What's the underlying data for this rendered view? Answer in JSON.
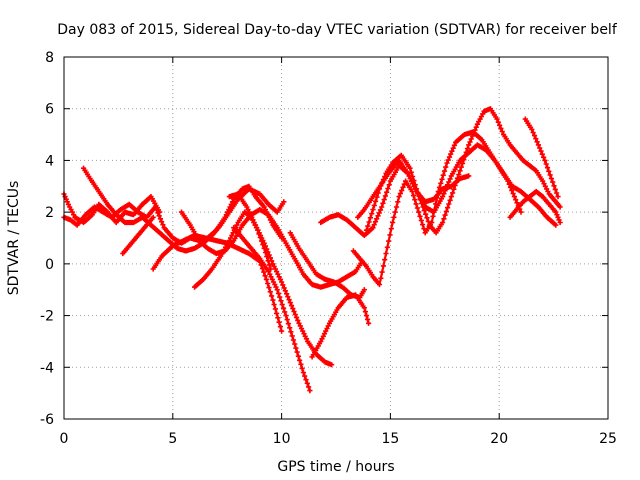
{
  "chart_data": {
    "type": "scatter",
    "title": "Day 083 of 2015, Sidereal Day-to-day VTEC variation (SDTVAR) for receiver belf",
    "xlabel": "GPS time / hours",
    "ylabel": "SDTVAR / TECUs",
    "xlim": [
      0,
      25
    ],
    "ylim": [
      -6,
      8
    ],
    "xticks": [
      "0",
      "5",
      "10",
      "15",
      "20",
      "25"
    ],
    "yticks": [
      "-6",
      "-4",
      "-2",
      "0",
      "2",
      "4",
      "6",
      "8"
    ],
    "grid": true,
    "marker": "plus",
    "color": "#ff0000",
    "series": [
      {
        "x": [
          0.0,
          0.3,
          0.6,
          1.0,
          1.4,
          1.8,
          2.2,
          2.6,
          3.0,
          3.4,
          3.8,
          4.2,
          4.6,
          5.0,
          5.4,
          5.8,
          6.2,
          6.6,
          7.0,
          7.4,
          7.8,
          8.2,
          8.5,
          8.8,
          9.2,
          9.6,
          10.0
        ],
        "y": [
          1.8,
          1.7,
          1.5,
          1.9,
          2.2,
          2.0,
          1.8,
          2.1,
          2.3,
          2.0,
          1.8,
          2.2,
          1.4,
          1.0,
          0.8,
          1.0,
          0.9,
          1.0,
          1.3,
          1.8,
          2.5,
          2.9,
          3.0,
          2.6,
          2.2,
          1.5,
          1.0
        ]
      },
      {
        "x": [
          0.0,
          0.2,
          0.5,
          0.9,
          1.3,
          1.6,
          2.0,
          2.4,
          2.8,
          3.2,
          3.6,
          4.0,
          4.4
        ],
        "y": [
          2.7,
          2.3,
          1.8,
          1.6,
          1.9,
          2.3,
          2.0,
          1.6,
          2.0,
          1.9,
          2.3,
          2.6,
          2.0
        ]
      },
      {
        "x": [
          0.9,
          1.2,
          1.6,
          2.0,
          2.4,
          2.8,
          3.2,
          3.6,
          4.0,
          4.4,
          4.8,
          5.2,
          5.6,
          6.0,
          6.4,
          6.8,
          7.2,
          7.6,
          8.0,
          8.5,
          9.0,
          9.4,
          9.8,
          10.1
        ],
        "y": [
          3.7,
          3.3,
          2.8,
          2.3,
          1.9,
          1.6,
          1.6,
          1.8,
          1.5,
          1.2,
          0.9,
          0.6,
          0.5,
          0.6,
          0.8,
          1.1,
          1.5,
          2.0,
          2.5,
          2.9,
          2.7,
          2.3,
          2.0,
          2.4
        ]
      },
      {
        "x": [
          2.7,
          3.0,
          3.4,
          3.8,
          4.1
        ],
        "y": [
          0.4,
          0.7,
          1.1,
          1.5,
          1.8
        ]
      },
      {
        "x": [
          4.1,
          4.5,
          5.0,
          5.5,
          6.0,
          6.5,
          7.0,
          7.5,
          8.0,
          8.5,
          9.0,
          9.3,
          9.6,
          10.0
        ],
        "y": [
          -0.2,
          0.3,
          0.7,
          0.9,
          1.1,
          1.0,
          0.9,
          0.8,
          0.6,
          0.4,
          0.1,
          -0.6,
          -1.4,
          -2.6
        ]
      },
      {
        "x": [
          5.4,
          5.8,
          6.2,
          6.6,
          7.0,
          7.4,
          7.8,
          8.2,
          8.6,
          9.0,
          9.4,
          9.8,
          10.2,
          10.6,
          11.0,
          11.4,
          11.8,
          12.2,
          12.6,
          13.0,
          13.4,
          13.7
        ],
        "y": [
          2.0,
          1.5,
          0.9,
          0.6,
          0.4,
          0.5,
          0.9,
          1.5,
          1.9,
          2.1,
          1.9,
          1.4,
          0.8,
          0.2,
          -0.4,
          -0.8,
          -0.9,
          -0.8,
          -0.7,
          -0.5,
          -0.3,
          0.1
        ]
      },
      {
        "x": [
          6.0,
          6.4,
          6.8,
          7.2,
          7.6,
          8.0,
          8.3,
          8.6,
          8.9,
          9.2,
          9.5
        ],
        "y": [
          -0.9,
          -0.6,
          -0.2,
          0.3,
          0.9,
          1.6,
          2.0,
          1.8,
          1.3,
          0.6,
          -0.2
        ]
      },
      {
        "x": [
          7.6,
          8.0,
          8.4,
          8.8,
          9.2,
          9.6,
          10.0,
          10.4,
          10.8,
          11.2,
          11.6,
          12.0,
          12.3
        ],
        "y": [
          2.6,
          2.7,
          2.2,
          1.5,
          0.8,
          0.0,
          -0.7,
          -1.5,
          -2.3,
          -3.0,
          -3.5,
          -3.8,
          -3.9
        ]
      },
      {
        "x": [
          7.8,
          8.2,
          8.6,
          9.0,
          9.4,
          9.8,
          10.2,
          10.6,
          11.0,
          11.3
        ],
        "y": [
          1.4,
          1.0,
          0.6,
          0.2,
          -0.3,
          -1.0,
          -2.0,
          -3.1,
          -4.2,
          -4.9
        ]
      },
      {
        "x": [
          10.4,
          10.8,
          11.2,
          11.6,
          12.0,
          12.4,
          12.8,
          13.2,
          13.6,
          13.8
        ],
        "y": [
          1.2,
          0.6,
          0.1,
          -0.4,
          -0.6,
          -0.7,
          -0.9,
          -1.2,
          -1.3,
          -1.0
        ]
      },
      {
        "x": [
          11.4,
          11.8,
          12.2,
          12.6,
          13.0,
          13.4,
          13.8,
          14.0
        ],
        "y": [
          -3.6,
          -3.0,
          -2.3,
          -1.7,
          -1.3,
          -1.2,
          -1.7,
          -2.3
        ]
      },
      {
        "x": [
          11.8,
          12.2,
          12.6,
          13.0,
          13.4,
          13.8,
          14.2,
          14.6,
          15.0,
          15.4,
          15.8,
          16.2,
          16.6,
          17.0,
          17.4,
          17.8,
          18.2,
          18.6,
          19.0,
          19.4,
          19.8,
          20.2,
          20.6,
          21.0,
          21.4,
          21.8,
          22.2,
          22.6
        ],
        "y": [
          1.6,
          1.8,
          1.9,
          1.7,
          1.4,
          1.1,
          1.4,
          2.2,
          3.2,
          3.8,
          3.5,
          2.8,
          2.2,
          2.0,
          2.6,
          3.4,
          4.0,
          4.3,
          4.6,
          4.4,
          4.0,
          3.5,
          3.0,
          2.8,
          2.5,
          2.2,
          1.8,
          1.5
        ]
      },
      {
        "x": [
          13.3,
          13.6,
          13.9,
          14.2,
          14.5,
          14.8,
          15.1,
          15.4,
          15.7,
          16.0,
          16.3,
          16.6,
          16.9,
          17.2,
          17.6,
          18.0,
          18.4,
          18.8,
          19.2,
          19.5,
          19.8,
          20.1,
          20.4,
          20.7,
          21.0
        ],
        "y": [
          0.5,
          0.2,
          -0.1,
          -0.5,
          -0.8,
          0.4,
          1.6,
          2.6,
          3.2,
          2.8,
          2.0,
          1.2,
          1.6,
          2.8,
          3.9,
          4.7,
          5.0,
          5.1,
          4.8,
          4.4,
          4.0,
          3.6,
          3.2,
          2.6,
          2.0
        ]
      },
      {
        "x": [
          13.9,
          14.2,
          14.5,
          14.8,
          15.1,
          15.5,
          15.9,
          16.2,
          16.5,
          16.8,
          17.1,
          17.4,
          17.8,
          18.2,
          18.6,
          19.0,
          19.3,
          19.6,
          19.9,
          20.2,
          20.5,
          20.8,
          21.1,
          21.4,
          21.7,
          22.0,
          22.3,
          22.8
        ],
        "y": [
          1.3,
          2.1,
          2.9,
          3.5,
          3.9,
          4.2,
          3.7,
          2.9,
          2.2,
          1.5,
          1.2,
          1.6,
          2.6,
          3.6,
          4.6,
          5.4,
          5.9,
          6.0,
          5.6,
          5.0,
          4.6,
          4.3,
          4.0,
          3.8,
          3.6,
          3.2,
          2.7,
          2.2
        ]
      },
      {
        "x": [
          13.5,
          13.8,
          14.2,
          14.6,
          15.0,
          15.4,
          15.8,
          16.2,
          16.6,
          17.0,
          17.4,
          17.8,
          18.2,
          18.6
        ],
        "y": [
          1.8,
          2.1,
          2.6,
          3.1,
          3.6,
          4.0,
          3.5,
          2.8,
          2.4,
          2.5,
          2.9,
          3.0,
          3.3,
          3.4
        ]
      },
      {
        "x": [
          20.5,
          20.8,
          21.1,
          21.4,
          21.7,
          22.0,
          22.3,
          22.6,
          22.8
        ],
        "y": [
          1.8,
          2.1,
          2.4,
          2.6,
          2.8,
          2.6,
          2.3,
          2.0,
          1.6
        ]
      },
      {
        "x": [
          21.2,
          21.5,
          21.8,
          22.1,
          22.4,
          22.7
        ],
        "y": [
          5.6,
          5.2,
          4.6,
          4.0,
          3.3,
          2.6
        ]
      }
    ]
  }
}
